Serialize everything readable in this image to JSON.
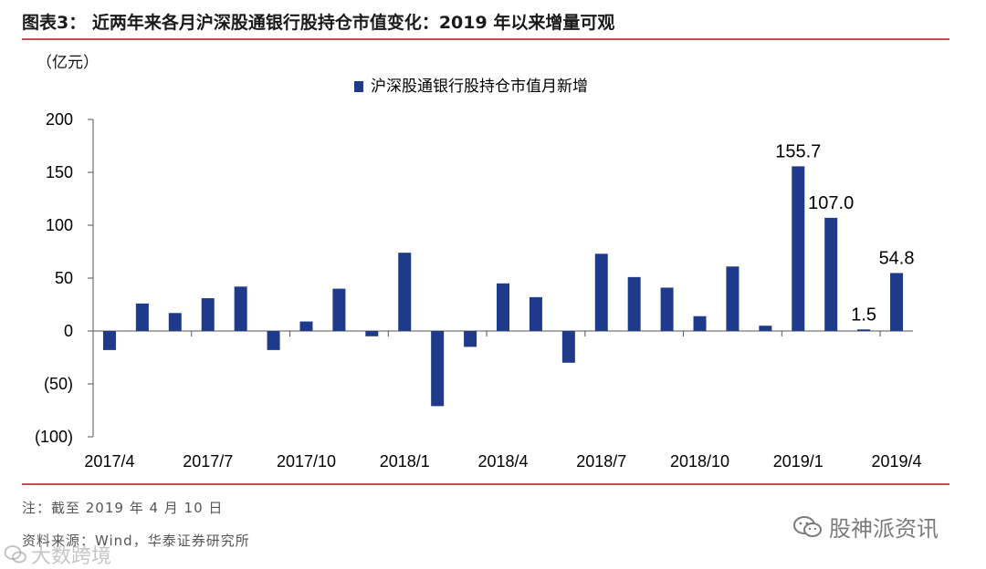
{
  "header": {
    "title": "图表3：  近两年来各月沪深股通银行股持仓市值变化：2019 年以来增量可观",
    "unit": "（亿元）"
  },
  "footer": {
    "note": "注：截至 2019 年 4 月 10 日",
    "source": "资料来源：Wind，华泰证券研究所",
    "watermark_right": "股神派资讯",
    "watermark_left": "大数跨境"
  },
  "colors": {
    "bar": "#1f3a8a",
    "rule": "#c0504d",
    "axis": "#555555"
  },
  "chart_data": {
    "type": "bar",
    "title": "",
    "xlabel": "",
    "ylabel": "（亿元）",
    "ylim": [
      -100,
      200
    ],
    "yticks": [
      200,
      150,
      100,
      50,
      0,
      -50,
      -100
    ],
    "ytick_labels": [
      "200",
      "150",
      "100",
      "50",
      "0",
      "(50)",
      "(100)"
    ],
    "grid": false,
    "legend_position": "top-center",
    "categories": [
      "2017/4",
      "2017/5",
      "2017/6",
      "2017/7",
      "2017/8",
      "2017/9",
      "2017/10",
      "2017/11",
      "2017/12",
      "2018/1",
      "2018/2",
      "2018/3",
      "2018/4",
      "2018/5",
      "2018/6",
      "2018/7",
      "2018/8",
      "2018/9",
      "2018/10",
      "2018/11",
      "2018/12",
      "2019/1",
      "2019/2",
      "2019/3",
      "2019/4"
    ],
    "xtick_labels": [
      "2017/4",
      "2017/7",
      "2017/10",
      "2018/1",
      "2018/4",
      "2018/7",
      "2018/10",
      "2019/1",
      "2019/4"
    ],
    "xtick_indices": [
      0,
      3,
      6,
      9,
      12,
      15,
      18,
      21,
      24
    ],
    "series": [
      {
        "name": "沪深股通银行股持仓市值月新增",
        "values": [
          -18,
          26,
          17,
          31,
          42,
          -18,
          9,
          40,
          -5,
          74,
          -71,
          -15,
          45,
          32,
          -30,
          73,
          51,
          41,
          14,
          61,
          5,
          155.7,
          107.0,
          1.5,
          54.8
        ]
      }
    ],
    "data_labels": [
      {
        "index": 21,
        "text": "155.7"
      },
      {
        "index": 22,
        "text": "107.0"
      },
      {
        "index": 23,
        "text": "1.5"
      },
      {
        "index": 24,
        "text": "54.8"
      }
    ]
  }
}
